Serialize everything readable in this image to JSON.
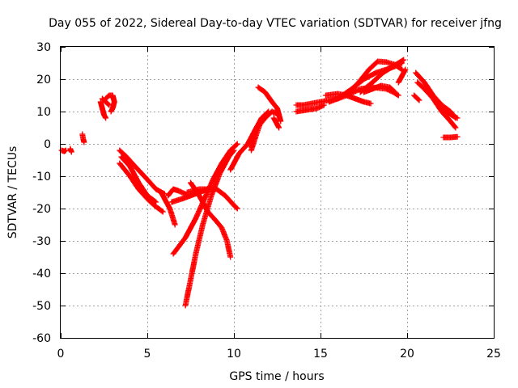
{
  "chart_data": {
    "type": "scatter",
    "title": "Day 055 of 2022, Sidereal Day-to-day VTEC variation (SDTVAR) for receiver jfng",
    "xlabel": "GPS time / hours",
    "ylabel": "SDTVAR / TECUs",
    "xlim": [
      0,
      25
    ],
    "ylim": [
      -60,
      30
    ],
    "xticks": [
      0,
      5,
      10,
      15,
      20,
      25
    ],
    "yticks": [
      -60,
      -50,
      -40,
      -30,
      -20,
      -10,
      0,
      10,
      20,
      30
    ],
    "grid": true,
    "marker": "+",
    "series_color": "#ff0000",
    "tracks": [
      {
        "name": "t01",
        "points": [
          [
            0.05,
            -2
          ],
          [
            0.2,
            -2.3
          ],
          [
            0.3,
            -2
          ]
        ]
      },
      {
        "name": "t02",
        "points": [
          [
            0.55,
            -1.5
          ],
          [
            0.62,
            -2.5
          ]
        ]
      },
      {
        "name": "t03",
        "points": [
          [
            1.25,
            3
          ],
          [
            1.3,
            1.5
          ],
          [
            1.35,
            0.5
          ]
        ]
      },
      {
        "name": "t04",
        "points": [
          [
            2.3,
            13
          ],
          [
            2.4,
            11
          ],
          [
            2.5,
            9
          ],
          [
            2.6,
            8
          ]
        ]
      },
      {
        "name": "t05",
        "points": [
          [
            2.6,
            14
          ],
          [
            2.8,
            15
          ],
          [
            3.0,
            15
          ],
          [
            3.1,
            13
          ],
          [
            3.0,
            11
          ],
          [
            2.9,
            10
          ]
        ]
      },
      {
        "name": "t06",
        "points": [
          [
            2.4,
            14
          ],
          [
            2.6,
            13
          ],
          [
            2.8,
            12
          ]
        ]
      },
      {
        "name": "t07",
        "points": [
          [
            3.4,
            -2
          ],
          [
            3.8,
            -4
          ],
          [
            4.3,
            -7
          ],
          [
            5.0,
            -11
          ],
          [
            5.5,
            -14
          ],
          [
            6.0,
            -15.5
          ]
        ]
      },
      {
        "name": "t08",
        "points": [
          [
            3.5,
            -4
          ],
          [
            4.0,
            -7
          ],
          [
            4.5,
            -12
          ],
          [
            5.0,
            -16
          ],
          [
            5.5,
            -18
          ]
        ]
      },
      {
        "name": "t09",
        "points": [
          [
            3.4,
            -6
          ],
          [
            4.0,
            -10
          ],
          [
            4.5,
            -14
          ],
          [
            5.0,
            -17
          ],
          [
            5.4,
            -19
          ],
          [
            5.9,
            -21
          ]
        ]
      },
      {
        "name": "t10",
        "points": [
          [
            6.2,
            -16
          ],
          [
            6.5,
            -14
          ],
          [
            6.8,
            -14.5
          ],
          [
            7.2,
            -15.5
          ]
        ]
      },
      {
        "name": "t11",
        "points": [
          [
            5.8,
            -15
          ],
          [
            6.0,
            -17
          ],
          [
            6.3,
            -20
          ],
          [
            6.6,
            -25
          ]
        ]
      },
      {
        "name": "t12",
        "points": [
          [
            6.4,
            -18
          ],
          [
            7.0,
            -17
          ],
          [
            7.5,
            -16
          ],
          [
            8.0,
            -15
          ],
          [
            8.5,
            -14
          ]
        ]
      },
      {
        "name": "t13",
        "points": [
          [
            6.5,
            -34
          ],
          [
            7.2,
            -29
          ],
          [
            7.8,
            -23
          ],
          [
            8.3,
            -17
          ],
          [
            8.8,
            -11
          ],
          [
            9.3,
            -6
          ],
          [
            9.8,
            -2
          ],
          [
            10.2,
            0
          ]
        ]
      },
      {
        "name": "t14",
        "points": [
          [
            7.2,
            -50
          ],
          [
            7.5,
            -42
          ],
          [
            7.8,
            -34
          ],
          [
            8.2,
            -25
          ],
          [
            8.7,
            -16
          ],
          [
            9.2,
            -9
          ],
          [
            9.7,
            -4
          ],
          [
            10.0,
            -2
          ]
        ]
      },
      {
        "name": "t15",
        "points": [
          [
            7.5,
            -12
          ],
          [
            8.0,
            -16
          ],
          [
            8.5,
            -21
          ],
          [
            9.0,
            -24
          ],
          [
            9.3,
            -26
          ],
          [
            9.6,
            -30
          ],
          [
            9.8,
            -35
          ]
        ]
      },
      {
        "name": "t16",
        "points": [
          [
            7.3,
            -15
          ],
          [
            8.0,
            -14
          ],
          [
            8.5,
            -14
          ],
          [
            9.0,
            -14
          ],
          [
            9.5,
            -16
          ],
          [
            10.0,
            -19
          ],
          [
            10.2,
            -20
          ]
        ]
      },
      {
        "name": "t17",
        "points": [
          [
            9.8,
            -8
          ],
          [
            10.3,
            -3
          ],
          [
            10.8,
            0
          ],
          [
            11.2,
            4
          ],
          [
            11.6,
            8
          ],
          [
            12.0,
            10
          ]
        ]
      },
      {
        "name": "t18",
        "points": [
          [
            11.0,
            -2
          ],
          [
            11.3,
            3
          ],
          [
            11.5,
            6
          ],
          [
            11.8,
            8
          ],
          [
            12.2,
            10
          ],
          [
            12.6,
            9
          ]
        ]
      },
      {
        "name": "t19",
        "points": [
          [
            11.0,
            -1
          ],
          [
            11.1,
            3
          ],
          [
            11.3,
            5
          ]
        ]
      },
      {
        "name": "t20",
        "points": [
          [
            11.4,
            17.5
          ],
          [
            11.8,
            16
          ],
          [
            12.2,
            13
          ],
          [
            12.5,
            11
          ],
          [
            12.6,
            9
          ],
          [
            12.7,
            7
          ]
        ]
      },
      {
        "name": "t21",
        "points": [
          [
            12.3,
            8
          ],
          [
            12.5,
            6
          ],
          [
            12.6,
            5
          ]
        ]
      },
      {
        "name": "t22",
        "points": [
          [
            13.6,
            12
          ],
          [
            14.0,
            12
          ],
          [
            14.5,
            12.5
          ],
          [
            15.0,
            13
          ],
          [
            15.5,
            13.5
          ],
          [
            16.0,
            14
          ]
        ]
      },
      {
        "name": "t23",
        "points": [
          [
            13.6,
            10
          ],
          [
            14.2,
            10.5
          ],
          [
            14.8,
            11
          ],
          [
            15.2,
            12
          ]
        ]
      },
      {
        "name": "t24",
        "points": [
          [
            15.3,
            15
          ],
          [
            16.0,
            15.5
          ],
          [
            16.5,
            15
          ],
          [
            17.0,
            14
          ],
          [
            17.5,
            13
          ],
          [
            17.9,
            12.5
          ]
        ]
      },
      {
        "name": "t25",
        "points": [
          [
            15.5,
            13
          ],
          [
            16.5,
            15
          ],
          [
            17.3,
            17
          ],
          [
            18.0,
            17.5
          ],
          [
            18.8,
            17
          ],
          [
            19.2,
            16
          ],
          [
            19.5,
            15
          ]
        ]
      },
      {
        "name": "t26",
        "points": [
          [
            16.0,
            14
          ],
          [
            16.8,
            17
          ],
          [
            17.5,
            20
          ],
          [
            18.2,
            22
          ],
          [
            18.8,
            23
          ],
          [
            19.3,
            24
          ],
          [
            19.7,
            25
          ]
        ]
      },
      {
        "name": "t27",
        "points": [
          [
            16.5,
            15
          ],
          [
            17.2,
            19
          ],
          [
            17.8,
            23
          ],
          [
            18.3,
            25.5
          ],
          [
            18.8,
            25.3
          ],
          [
            19.3,
            24.5
          ],
          [
            19.7,
            23
          ]
        ]
      },
      {
        "name": "t28",
        "points": [
          [
            17.3,
            16
          ],
          [
            18.0,
            19
          ],
          [
            18.6,
            22
          ],
          [
            19.2,
            24
          ],
          [
            19.8,
            26
          ]
        ]
      },
      {
        "name": "t29",
        "points": [
          [
            17.5,
            16
          ],
          [
            18.0,
            17
          ],
          [
            18.5,
            18
          ],
          [
            19.0,
            17.5
          ],
          [
            19.3,
            16
          ]
        ]
      },
      {
        "name": "t30",
        "points": [
          [
            19.5,
            19
          ],
          [
            19.7,
            21
          ],
          [
            19.9,
            23
          ]
        ]
      },
      {
        "name": "t31",
        "points": [
          [
            20.5,
            22
          ],
          [
            21.0,
            19
          ],
          [
            21.5,
            15
          ],
          [
            22.0,
            12
          ],
          [
            22.5,
            10
          ],
          [
            22.8,
            8
          ]
        ]
      },
      {
        "name": "t32",
        "points": [
          [
            20.6,
            19
          ],
          [
            21.0,
            17
          ],
          [
            21.5,
            14
          ],
          [
            22.0,
            10
          ],
          [
            22.5,
            7
          ],
          [
            22.8,
            5
          ]
        ]
      },
      {
        "name": "t33",
        "points": [
          [
            21.2,
            17
          ],
          [
            21.7,
            13
          ],
          [
            22.2,
            10
          ],
          [
            22.7,
            8.5
          ],
          [
            22.9,
            8
          ]
        ]
      },
      {
        "name": "t34",
        "points": [
          [
            20.4,
            15
          ],
          [
            20.7,
            13.5
          ]
        ]
      },
      {
        "name": "t35",
        "points": [
          [
            22.1,
            2
          ],
          [
            22.5,
            2
          ],
          [
            22.9,
            2.2
          ]
        ]
      }
    ]
  }
}
